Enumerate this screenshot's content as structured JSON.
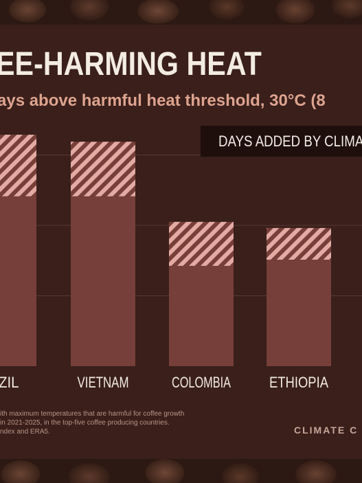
{
  "title": "EE-HARMING HEAT",
  "subtitle": "ays above harmful heat threshold, 30°C (8",
  "legend": {
    "label": "DAYS ADDED BY CLIMA"
  },
  "footnote": [
    "ith maximum temperatures that are harmful for coffee growth",
    "in 2021-2025, in the top-five coffee producing countries.",
    "ndex and ERA5."
  ],
  "brand": "CLIMATE C",
  "colors": {
    "base_bar": "#773f39",
    "added_stripe": "#e3aba3",
    "added_bg": "#773f39",
    "panel": "#3a1f1b",
    "title": "#f3ece2",
    "subtitle": "#dea48f"
  },
  "chart_data": {
    "type": "bar",
    "stacked": true,
    "categories": [
      "AZIL",
      "VIETNAM",
      "COLOMBIA",
      "ETHIOPIA"
    ],
    "series": [
      {
        "values": [
          193,
          193,
          114,
          121
        ]
      },
      {
        "name": "DAYS ADDED BY CLIMA",
        "values": [
          70,
          62,
          50,
          36
        ]
      }
    ],
    "ylim": [
      0,
      320
    ],
    "grid": true,
    "legend_position": "top-right"
  }
}
